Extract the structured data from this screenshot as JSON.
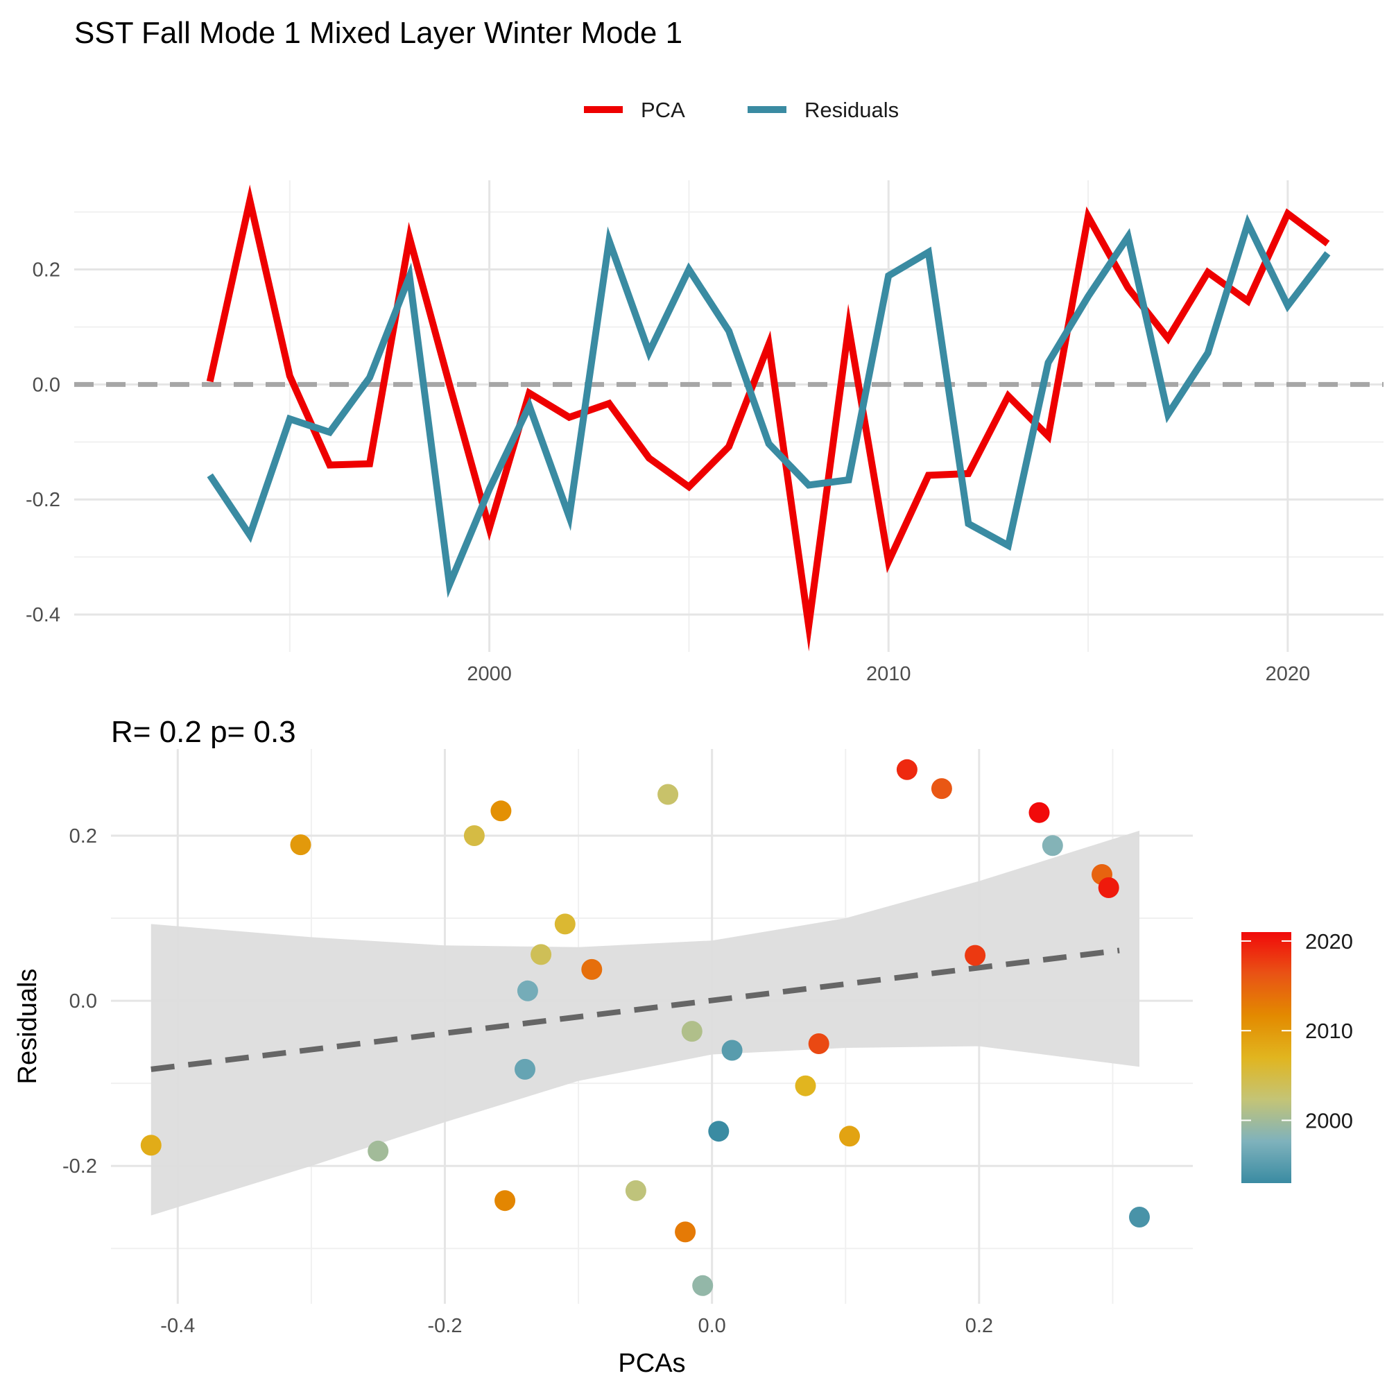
{
  "title": "SST Fall Mode 1 Mixed Layer Winter Mode 1",
  "colors": {
    "pca": "#EE0000",
    "residuals": "#3A8BA2",
    "grid_major": "#E5E5E5",
    "grid_minor": "#F0F0F0",
    "zero_line": "#A6A6A6",
    "ribbon": "#DDDDDD",
    "fit_line": "#666666",
    "axis_text": "#4D4D4D",
    "title_text": "#000000",
    "year_scale": [
      "#3A8BA2",
      "#7FB2BC",
      "#C4C476",
      "#E1B51F",
      "#E38A00",
      "#E95315",
      "#F10A0A"
    ]
  },
  "chart_data": [
    {
      "type": "line",
      "legend": {
        "position": "top",
        "entries": [
          "PCA",
          "Residuals"
        ]
      },
      "x": [
        1993,
        1994,
        1995,
        1996,
        1997,
        1998,
        1999,
        2000,
        2001,
        2002,
        2003,
        2004,
        2005,
        2006,
        2007,
        2008,
        2009,
        2010,
        2011,
        2012,
        2013,
        2014,
        2015,
        2016,
        2017,
        2018,
        2019,
        2020,
        2021
      ],
      "series": [
        {
          "name": "PCA",
          "values": [
            0.005,
            0.32,
            0.015,
            -0.14,
            -0.138,
            0.255,
            0.0,
            -0.25,
            -0.015,
            -0.057,
            -0.033,
            -0.128,
            -0.178,
            -0.108,
            0.07,
            -0.42,
            0.1,
            -0.308,
            -0.158,
            -0.155,
            -0.02,
            -0.09,
            0.292,
            0.168,
            0.08,
            0.195,
            0.145,
            0.297,
            0.245
          ]
        },
        {
          "name": "Residuals",
          "values": [
            -0.158,
            -0.262,
            -0.06,
            -0.083,
            0.012,
            0.188,
            -0.348,
            -0.182,
            -0.037,
            -0.23,
            0.25,
            0.056,
            0.2,
            0.093,
            -0.103,
            -0.175,
            -0.166,
            0.189,
            0.23,
            -0.242,
            -0.28,
            0.038,
            0.153,
            0.257,
            -0.052,
            0.055,
            0.28,
            0.137,
            0.228
          ]
        }
      ],
      "xlim": [
        1989.6,
        2022.4
      ],
      "ylim": [
        -0.465,
        0.355
      ],
      "x_ticks": [
        2000,
        2010,
        2020
      ],
      "x_tick_labels": [
        "2000",
        "2010",
        "2020"
      ],
      "x_minor_ticks": [
        1995,
        2005,
        2015
      ],
      "y_ticks": [
        -0.4,
        -0.2,
        0.0,
        0.2
      ],
      "y_tick_labels": [
        "-0.4",
        "-0.2",
        "0.0",
        "0.2"
      ],
      "y_minor_ticks": [
        -0.3,
        -0.1,
        0.1,
        0.3
      ],
      "reference_line": {
        "y": 0,
        "style": "dashed"
      },
      "grid": true
    },
    {
      "type": "scatter",
      "title": "R= 0.2  p= 0.3",
      "xlabel": "PCAs",
      "ylabel": "Residuals",
      "points": [
        {
          "x": 0.005,
          "y": -0.158,
          "year": 1993
        },
        {
          "x": 0.32,
          "y": -0.262,
          "year": 1994
        },
        {
          "x": 0.015,
          "y": -0.06,
          "year": 1995
        },
        {
          "x": -0.14,
          "y": -0.083,
          "year": 1996
        },
        {
          "x": -0.138,
          "y": 0.012,
          "year": 1997
        },
        {
          "x": 0.255,
          "y": 0.188,
          "year": 1998
        },
        {
          "x": -0.007,
          "y": -0.345,
          "year": 1999
        },
        {
          "x": -0.25,
          "y": -0.182,
          "year": 2000
        },
        {
          "x": -0.015,
          "y": -0.037,
          "year": 2001
        },
        {
          "x": -0.057,
          "y": -0.23,
          "year": 2002
        },
        {
          "x": -0.033,
          "y": 0.25,
          "year": 2003
        },
        {
          "x": -0.128,
          "y": 0.056,
          "year": 2004
        },
        {
          "x": -0.178,
          "y": 0.2,
          "year": 2005
        },
        {
          "x": -0.11,
          "y": 0.093,
          "year": 2006
        },
        {
          "x": 0.07,
          "y": -0.103,
          "year": 2007
        },
        {
          "x": -0.42,
          "y": -0.175,
          "year": 2008
        },
        {
          "x": 0.103,
          "y": -0.164,
          "year": 2009
        },
        {
          "x": -0.308,
          "y": 0.189,
          "year": 2010
        },
        {
          "x": -0.158,
          "y": 0.23,
          "year": 2011
        },
        {
          "x": -0.155,
          "y": -0.242,
          "year": 2012
        },
        {
          "x": -0.02,
          "y": -0.28,
          "year": 2013
        },
        {
          "x": -0.09,
          "y": 0.038,
          "year": 2014
        },
        {
          "x": 0.292,
          "y": 0.153,
          "year": 2015
        },
        {
          "x": 0.172,
          "y": 0.257,
          "year": 2016
        },
        {
          "x": 0.08,
          "y": -0.052,
          "year": 2017
        },
        {
          "x": 0.197,
          "y": 0.055,
          "year": 2018
        },
        {
          "x": 0.146,
          "y": 0.28,
          "year": 2019
        },
        {
          "x": 0.297,
          "y": 0.137,
          "year": 2020
        },
        {
          "x": 0.245,
          "y": 0.228,
          "year": 2021
        }
      ],
      "fit_line": {
        "x": [
          -0.42,
          0.305
        ],
        "y": [
          -0.083,
          0.061
        ],
        "style": "dashed"
      },
      "confidence_band": {
        "x": [
          -0.42,
          -0.3,
          -0.2,
          -0.1,
          0.0,
          0.1,
          0.2,
          0.32
        ],
        "upper": [
          0.093,
          0.077,
          0.067,
          0.065,
          0.073,
          0.1,
          0.145,
          0.206
        ],
        "lower": [
          -0.26,
          -0.2,
          -0.147,
          -0.097,
          -0.065,
          -0.057,
          -0.055,
          -0.08
        ]
      },
      "xlim": [
        -0.45,
        0.36
      ],
      "ylim": [
        -0.367,
        0.305
      ],
      "x_ticks": [
        -0.4,
        -0.2,
        0.0,
        0.2
      ],
      "x_tick_labels": [
        "-0.4",
        "-0.2",
        "0.0",
        "0.2"
      ],
      "x_minor_ticks": [
        -0.3,
        -0.1,
        0.1,
        0.3
      ],
      "y_ticks": [
        -0.2,
        0.0,
        0.2
      ],
      "y_tick_labels": [
        "-0.2",
        "0.0",
        "0.2"
      ],
      "y_minor_ticks": [
        -0.3,
        -0.1,
        0.1
      ],
      "colorbar": {
        "range": [
          1993,
          2021
        ],
        "ticks": [
          2000,
          2010,
          2020
        ],
        "tick_labels": [
          "2000",
          "2010",
          "2020"
        ]
      },
      "grid": true
    }
  ]
}
